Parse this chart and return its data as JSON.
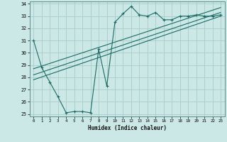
{
  "xlabel": "Humidex (Indice chaleur)",
  "bg_color": "#cce8e6",
  "grid_color": "#a8ccc8",
  "line_color": "#1a6b65",
  "xlim": [
    -0.5,
    23.5
  ],
  "ylim": [
    24.8,
    34.2
  ],
  "xticks": [
    0,
    1,
    2,
    3,
    4,
    5,
    6,
    7,
    8,
    9,
    10,
    11,
    12,
    13,
    14,
    15,
    16,
    17,
    18,
    19,
    20,
    21,
    22,
    23
  ],
  "yticks": [
    25,
    26,
    27,
    28,
    29,
    30,
    31,
    32,
    33,
    34
  ],
  "zigzag_x": [
    0,
    1,
    2,
    3,
    4,
    5,
    6,
    7,
    8,
    9,
    10,
    11,
    12,
    13,
    14,
    15,
    16,
    17,
    18,
    19,
    20,
    21,
    22,
    23
  ],
  "zigzag_y": [
    31.0,
    28.8,
    27.6,
    26.4,
    25.1,
    25.2,
    25.2,
    25.1,
    30.3,
    27.3,
    32.5,
    33.2,
    33.8,
    33.1,
    33.0,
    33.3,
    32.7,
    32.7,
    33.0,
    33.0,
    33.1,
    33.0,
    33.0,
    33.1
  ],
  "line1_x": [
    0,
    23
  ],
  "line1_y": [
    27.8,
    33.0
  ],
  "line2_x": [
    0,
    23
  ],
  "line2_y": [
    28.2,
    33.3
  ],
  "line3_x": [
    0,
    23
  ],
  "line3_y": [
    28.7,
    33.7
  ]
}
